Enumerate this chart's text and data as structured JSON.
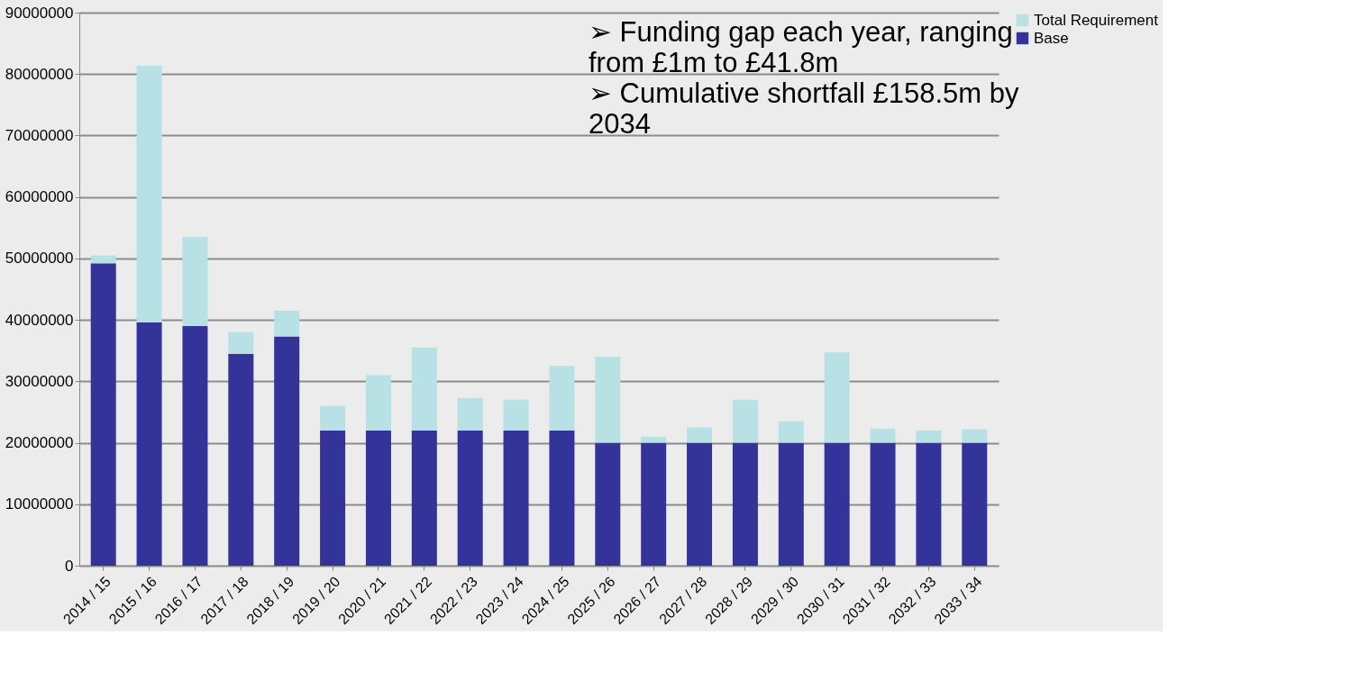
{
  "chart_data": {
    "type": "bar",
    "stacked": true,
    "categories": [
      "2014 / 15",
      "2015 / 16",
      "2016 / 17",
      "2017 / 18",
      "2018 / 19",
      "2019 / 20",
      "2020 / 21",
      "2021 / 22",
      "2022 / 23",
      "2023 / 24",
      "2024 / 25",
      "2025 / 26",
      "2026 / 27",
      "2027 / 28",
      "2028 / 29",
      "2029 / 30",
      "2030 / 31",
      "2031 / 32",
      "2032 / 33",
      "2033 / 34"
    ],
    "series": [
      {
        "name": "Base",
        "color": "#333399",
        "values": [
          49200000,
          39600000,
          39000000,
          34500000,
          37300000,
          22000000,
          22000000,
          22000000,
          22000000,
          22000000,
          22000000,
          20000000,
          20000000,
          20000000,
          20000000,
          20000000,
          20000000,
          20000000,
          20000000,
          20000000
        ]
      },
      {
        "name": "Total Requirement",
        "color": "#b7e1e4",
        "values": [
          1300000,
          41800000,
          14500000,
          3500000,
          4200000,
          4000000,
          9000000,
          13500000,
          5300000,
          5000000,
          10500000,
          14000000,
          1000000,
          2500000,
          7000000,
          3500000,
          14700000,
          2300000,
          2000000,
          2200000
        ]
      }
    ],
    "ylim": [
      0,
      90000000
    ],
    "yticks": [
      0,
      10000000,
      20000000,
      30000000,
      40000000,
      50000000,
      60000000,
      70000000,
      80000000,
      90000000
    ],
    "grid": "y",
    "legend": "right",
    "annotations": [
      "➢  Funding gap each year, ranging from £1m to £41.8m",
      "➢  Cumulative shortfall £158.5m by 2034"
    ]
  }
}
